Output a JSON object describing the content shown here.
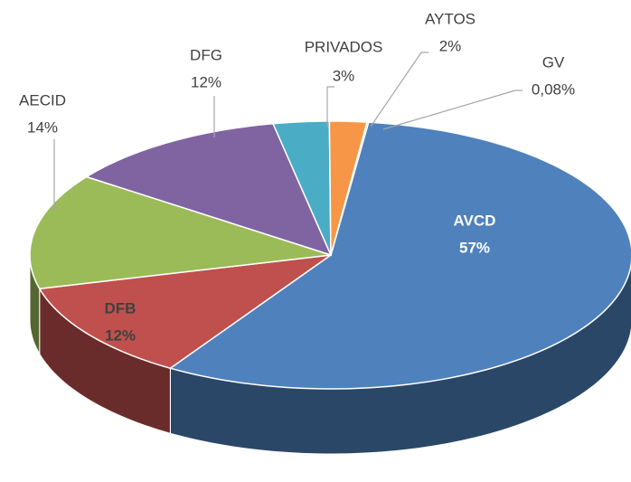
{
  "chart_data": {
    "type": "pie",
    "categories": [
      "AVCD",
      "DFB",
      "AECID",
      "DFG",
      "PRIVADOS",
      "AYTOS",
      "GV"
    ],
    "values": [
      57,
      12,
      14,
      12,
      3,
      2,
      0.08
    ],
    "value_labels": [
      "57%",
      "12%",
      "14%",
      "12%",
      "3%",
      "2%",
      "0,08%"
    ],
    "colors": [
      "#4f81bd",
      "#c0504d",
      "#9bbb59",
      "#8064a2",
      "#4bacc6",
      "#f79646",
      "#2c4d75"
    ]
  }
}
